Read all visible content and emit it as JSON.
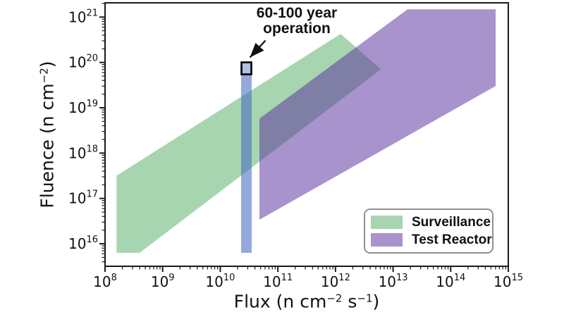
{
  "chart_data": {
    "type": "area",
    "title": "",
    "xlabel": "Flux (n cm⁻² s⁻¹)",
    "ylabel": "Fluence (n cm⁻²)",
    "x_scale": "log",
    "y_scale": "log",
    "xlim_log10": [
      8,
      15
    ],
    "ylim_log10": [
      15.503,
      21.315
    ],
    "grid": false,
    "tick_base": "10",
    "x_tick_exponents": [
      8,
      9,
      10,
      11,
      12,
      13,
      14,
      15
    ],
    "y_tick_exponents": [
      16,
      17,
      18,
      19,
      20,
      21
    ],
    "regions": [
      {
        "name": "Surveillance",
        "color": "#3ca14e",
        "opacity": 0.45,
        "vertices_log10": [
          [
            8.2,
            17.5
          ],
          [
            12.09,
            20.63
          ],
          [
            12.79,
            19.85
          ],
          [
            8.6,
            15.8
          ],
          [
            8.2,
            15.8
          ]
        ]
      },
      {
        "name": "Test Reactor",
        "color": "#5b2f9e",
        "opacity": 0.52,
        "vertices_log10": [
          [
            10.68,
            18.76
          ],
          [
            13.25,
            21.17
          ],
          [
            14.78,
            21.17
          ],
          [
            14.78,
            19.48
          ],
          [
            10.68,
            16.53
          ]
        ]
      }
    ],
    "bar": {
      "label": "60-100 year operation",
      "color": "#4a6fc3",
      "opacity": 0.6,
      "x_log10_range": [
        10.362,
        10.546
      ],
      "y_log10_range": [
        15.8,
        19.98
      ]
    },
    "marker": {
      "shape": "square",
      "fill": "#aec3e2",
      "border": "#000000",
      "center_log10": [
        10.454,
        19.87
      ]
    },
    "annotation": {
      "lines": [
        "60-100 year",
        "operation"
      ],
      "target_log10": [
        10.49,
        20.08
      ]
    },
    "legend": {
      "position": "lower right",
      "entries": [
        {
          "label": "Surveillance",
          "swatch": "#a7d5af"
        },
        {
          "label": "Test Reactor",
          "swatch": "#aa93cd"
        }
      ]
    }
  }
}
